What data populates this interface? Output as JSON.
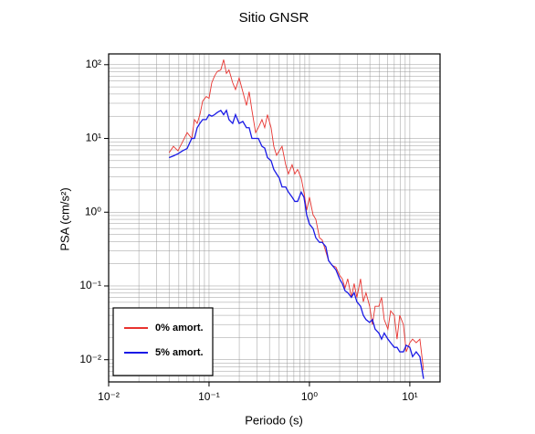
{
  "chart_data": {
    "type": "line",
    "title": "Sitio GNSR",
    "x_label": "Periodo (s)",
    "y_label": "PSA (cm/s²)",
    "x_scale": "log",
    "y_scale": "log",
    "grid": true,
    "legend": "lower left",
    "xlim": [
      0.01,
      20
    ],
    "ylim": [
      0.005,
      140
    ],
    "xticks": [
      {
        "value": 0.01,
        "label": "10⁻²"
      },
      {
        "value": 0.1,
        "label": "10⁻¹"
      },
      {
        "value": 1,
        "label": "10⁰"
      },
      {
        "value": 10,
        "label": "10¹"
      }
    ],
    "yticks": [
      {
        "value": 0.01,
        "label": "10⁻²"
      },
      {
        "value": 0.1,
        "label": "10⁻¹"
      },
      {
        "value": 1,
        "label": "10⁰"
      },
      {
        "value": 10,
        "label": "10¹"
      },
      {
        "value": 100,
        "label": "10²"
      }
    ],
    "x": [
      0.04,
      0.0442,
      0.049,
      0.0545,
      0.0605,
      0.0672,
      0.0716,
      0.0762,
      0.0811,
      0.0864,
      0.0939,
      0.1,
      0.1065,
      0.1134,
      0.1208,
      0.131,
      0.1398,
      0.149,
      0.158,
      0.172,
      0.1835,
      0.1995,
      0.217,
      0.236,
      0.251,
      0.2675,
      0.291,
      0.31,
      0.3367,
      0.3586,
      0.382,
      0.415,
      0.4418,
      0.471,
      0.501,
      0.5337,
      0.58,
      0.618,
      0.672,
      0.715,
      0.762,
      0.828,
      0.882,
      0.939,
      1.0,
      1.087,
      1.158,
      1.259,
      1.34,
      1.458,
      1.552,
      1.688,
      1.835,
      1.995,
      2.124,
      2.262,
      2.408,
      2.618,
      2.788,
      2.97,
      3.23,
      3.44,
      3.66,
      3.98,
      4.24,
      4.51,
      4.91,
      5.23,
      5.56,
      6.05,
      6.44,
      7.0,
      7.46,
      7.94,
      8.63,
      9.2,
      10.0,
      10.65,
      11.58,
      12.6,
      13.7
    ],
    "series": [
      {
        "name": "0% amort.",
        "color": "#e8332f",
        "values": [
          6.4,
          7.8,
          6.8,
          9,
          12,
          10,
          18,
          16,
          21,
          32,
          37,
          35,
          57,
          70,
          81,
          85,
          117,
          76,
          85,
          57,
          46,
          66,
          43,
          28,
          43,
          24,
          12,
          14,
          18,
          14,
          21,
          14,
          7.8,
          5.9,
          6.8,
          7.8,
          4.4,
          3.3,
          4.4,
          3.3,
          3.8,
          2.9,
          1.87,
          1.06,
          1.6,
          0.92,
          0.8,
          0.45,
          0.42,
          0.29,
          0.22,
          0.19,
          0.18,
          0.14,
          0.125,
          0.094,
          0.125,
          0.07,
          0.108,
          0.07,
          0.125,
          0.061,
          0.081,
          0.053,
          0.03,
          0.053,
          0.053,
          0.07,
          0.035,
          0.026,
          0.046,
          0.04,
          0.019,
          0.04,
          0.03,
          0.0128,
          0.017,
          0.019,
          0.017,
          0.019,
          0.0072
        ]
      },
      {
        "name": "5% amort.",
        "color": "#1a1ae6",
        "values": [
          5.5,
          5.8,
          6.2,
          6.8,
          7.3,
          10,
          10,
          14,
          16,
          18,
          18,
          21,
          20,
          21,
          22.5,
          24,
          21,
          24,
          18,
          16,
          21,
          16,
          17,
          14,
          14,
          10,
          10,
          10,
          7.8,
          7.4,
          5.5,
          5,
          3.8,
          3.3,
          2.9,
          2.2,
          2.2,
          1.87,
          1.6,
          1.4,
          1.4,
          1.87,
          1.6,
          0.92,
          0.69,
          0.6,
          0.45,
          0.39,
          0.39,
          0.34,
          0.22,
          0.19,
          0.166,
          0.125,
          0.108,
          0.086,
          0.081,
          0.07,
          0.081,
          0.061,
          0.053,
          0.04,
          0.035,
          0.032,
          0.035,
          0.026,
          0.023,
          0.019,
          0.023,
          0.019,
          0.017,
          0.0147,
          0.0147,
          0.0128,
          0.0128,
          0.0157,
          0.0147,
          0.011,
          0.0128,
          0.011,
          0.0055
        ]
      }
    ]
  }
}
